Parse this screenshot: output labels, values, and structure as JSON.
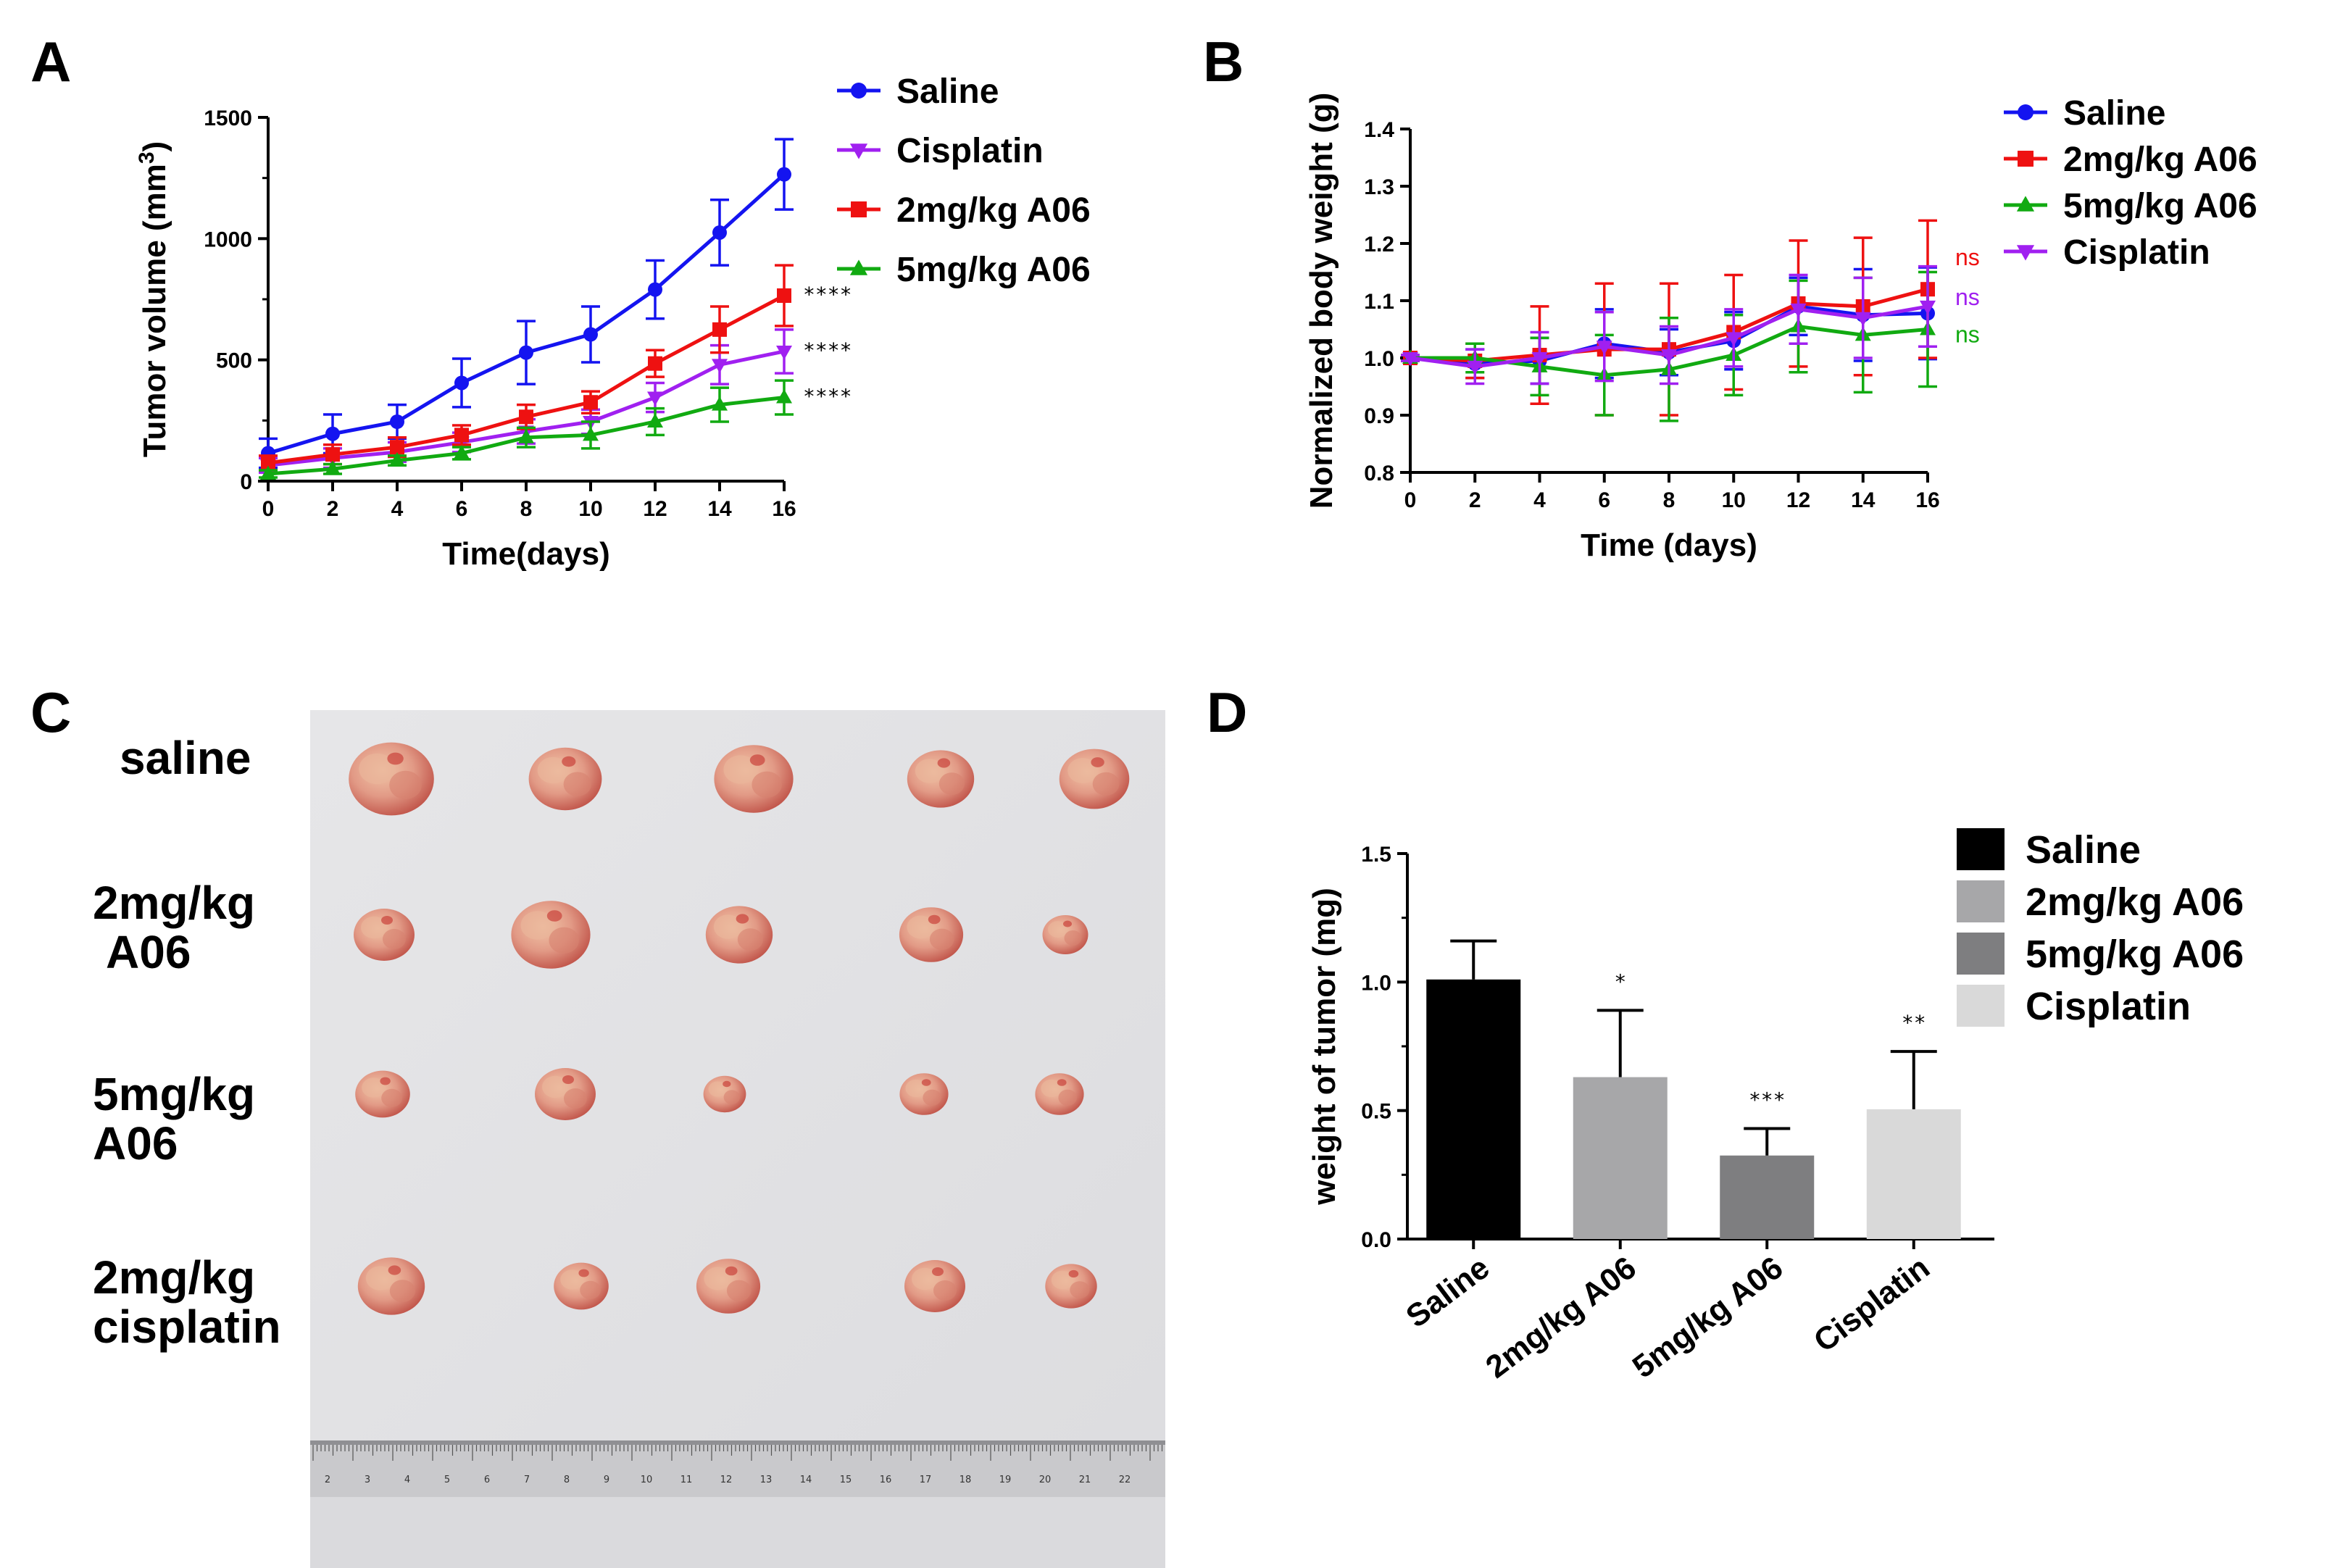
{
  "panels": {
    "a": "A",
    "b": "B",
    "c": "C",
    "d": "D"
  },
  "colors": {
    "saline": "#1414f0",
    "cisplatin": "#a020f0",
    "a06_2": "#ee1111",
    "a06_5": "#11aa11",
    "bar_saline": "#000000",
    "bar_2mg": "#a7a7a9",
    "bar_5mg": "#7e7e80",
    "bar_cis": "#d9d9d9",
    "photo_bg": "#e2e2e4"
  },
  "chart_data": [
    {
      "id": "A",
      "type": "line",
      "title": "",
      "xlabel": "Time(days)",
      "ylabel": "Tumor volume (mm",
      "ylabel_sup": "3",
      "ylabel_close": ")",
      "xlim": [
        0,
        16
      ],
      "ylim": [
        0,
        1500
      ],
      "x_ticks": [
        "0",
        "2",
        "4",
        "6",
        "8",
        "10",
        "12",
        "14",
        "16"
      ],
      "y_ticks": [
        "0",
        "500",
        "1000",
        "1500"
      ],
      "x": [
        0,
        2,
        4,
        6,
        8,
        10,
        12,
        14,
        16
      ],
      "series": [
        {
          "name": "Saline",
          "marker": "circle",
          "color_key": "saline",
          "values": [
            115,
            195,
            245,
            405,
            530,
            605,
            790,
            1025,
            1265
          ],
          "errors": [
            60,
            80,
            70,
            100,
            130,
            115,
            120,
            135,
            145
          ]
        },
        {
          "name": "Cisplatin",
          "marker": "triangle-down",
          "color_key": "cisplatin",
          "values": [
            65,
            95,
            120,
            160,
            205,
            245,
            345,
            480,
            535
          ],
          "errors": [
            30,
            40,
            40,
            40,
            50,
            50,
            60,
            80,
            90
          ]
        },
        {
          "name": "2mg/kg A06",
          "marker": "square",
          "color_key": "a06_2",
          "values": [
            75,
            110,
            140,
            190,
            265,
            325,
            485,
            625,
            765
          ],
          "errors": [
            30,
            40,
            40,
            40,
            50,
            45,
            55,
            95,
            125
          ]
        },
        {
          "name": "5mg/kg A06",
          "marker": "triangle-up",
          "color_key": "a06_5",
          "values": [
            30,
            50,
            85,
            115,
            180,
            190,
            245,
            315,
            345
          ],
          "errors": [
            15,
            20,
            20,
            25,
            40,
            55,
            55,
            70,
            70
          ]
        }
      ],
      "annotations": [
        "****",
        "****",
        "****"
      ]
    },
    {
      "id": "B",
      "type": "line",
      "title": "",
      "xlabel": "Time (days)",
      "ylabel": "Normalized body weight (g)",
      "xlim": [
        0,
        16
      ],
      "ylim": [
        0.8,
        1.4
      ],
      "x_ticks": [
        "0",
        "2",
        "4",
        "6",
        "8",
        "10",
        "12",
        "14",
        "16"
      ],
      "y_ticks": [
        "0.8",
        "0.9",
        "1.0",
        "1.1",
        "1.2",
        "1.3",
        "1.4"
      ],
      "x": [
        0,
        2,
        4,
        6,
        8,
        10,
        12,
        14,
        16
      ],
      "series": [
        {
          "name": "Saline",
          "marker": "circle",
          "color_key": "saline",
          "values": [
            1.0,
            0.99,
            0.995,
            1.025,
            1.01,
            1.03,
            1.09,
            1.075,
            1.078
          ],
          "errors": [
            0.005,
            0.025,
            0.04,
            0.06,
            0.04,
            0.05,
            0.05,
            0.08,
            0.08
          ]
        },
        {
          "name": "2mg/kg A06",
          "marker": "square",
          "color_key": "a06_2",
          "values": [
            1.0,
            0.995,
            1.005,
            1.015,
            1.015,
            1.045,
            1.095,
            1.09,
            1.12
          ],
          "errors": [
            0.005,
            0.03,
            0.085,
            0.115,
            0.115,
            0.1,
            0.11,
            0.12,
            0.12
          ]
        },
        {
          "name": "5mg/kg A06",
          "marker": "triangle-up",
          "color_key": "a06_5",
          "values": [
            1.0,
            1.0,
            0.985,
            0.97,
            0.98,
            1.005,
            1.055,
            1.04,
            1.05
          ],
          "errors": [
            0.005,
            0.025,
            0.05,
            0.07,
            0.09,
            0.07,
            0.08,
            0.1,
            0.1
          ]
        },
        {
          "name": "Cisplatin",
          "marker": "triangle-down",
          "color_key": "cisplatin",
          "values": [
            1.0,
            0.985,
            1.0,
            1.02,
            1.005,
            1.035,
            1.085,
            1.07,
            1.09
          ],
          "errors": [
            0.005,
            0.03,
            0.045,
            0.06,
            0.05,
            0.05,
            0.06,
            0.07,
            0.07
          ]
        }
      ],
      "annotations": [
        {
          "text": "ns",
          "color_key": "a06_2"
        },
        {
          "text": "ns",
          "color_key": "cisplatin"
        },
        {
          "text": "ns",
          "color_key": "a06_5"
        }
      ]
    },
    {
      "id": "D",
      "type": "bar",
      "title": "",
      "xlabel": "",
      "ylabel": "weight of tumor (mg)",
      "ylim": [
        0,
        1.5
      ],
      "y_ticks": [
        "0.0",
        "0.5",
        "1.0",
        "1.5"
      ],
      "categories": [
        "Saline",
        "2mg/kg A06",
        "5mg/kg A06",
        "Cisplatin"
      ],
      "values": [
        1.01,
        0.63,
        0.325,
        0.505
      ],
      "errors": [
        0.15,
        0.26,
        0.105,
        0.225
      ],
      "bar_color_keys": [
        "bar_saline",
        "bar_2mg",
        "bar_5mg",
        "bar_cis"
      ],
      "significance": [
        "",
        "*",
        "***",
        "**"
      ],
      "legend": [
        "Saline",
        "2mg/kg A06",
        "5mg/kg A06",
        "Cisplatin"
      ]
    }
  ],
  "photo": {
    "row_labels": [
      {
        "lines": [
          "saline"
        ]
      },
      {
        "lines": [
          "2mg/kg",
          "A06"
        ]
      },
      {
        "lines": [
          "5mg/kg",
          "A06"
        ]
      },
      {
        "lines": [
          "2mg/kg",
          "cisplatin"
        ]
      }
    ],
    "ruler_numbers": [
      "2",
      "3",
      "4",
      "5",
      "6",
      "7",
      "8",
      "9",
      "10",
      "11",
      "12",
      "13",
      "14",
      "15",
      "16",
      "17",
      "18",
      "19",
      "20",
      "21",
      "22"
    ]
  }
}
